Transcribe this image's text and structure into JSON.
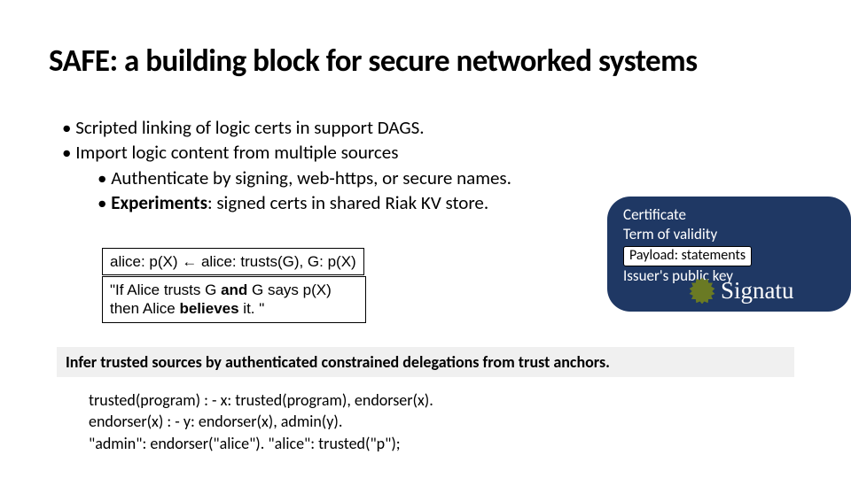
{
  "title": "SAFE: a building block for secure networked systems",
  "bullets": {
    "b1": "Scripted linking of logic certs in support DAGS.",
    "b2": "Import logic content from multiple sources",
    "b2a": "Authenticate by signing, web-https, or secure names.",
    "b2b_prefix": "Experiments",
    "b2b_rest": ": signed certs in shared Riak KV store."
  },
  "logic_box1": "alice: p(X) ← alice: trusts(G), G: p(X)",
  "logic_box2_l1_a": "\"If Alice trusts G ",
  "logic_box2_l1_b": "and",
  "logic_box2_l1_c": " G says p(X)",
  "logic_box2_l2_a": "then Alice ",
  "logic_box2_l2_b": "believes",
  "logic_box2_l2_c": " it. \"",
  "cert": {
    "l1": "Certificate",
    "l2": "Term of validity",
    "payload": "Payload: statements",
    "l4": "Issuer's public key",
    "sig": "Signatu"
  },
  "infer": "Infer trusted sources by authenticated constrained delegations from trust anchors.",
  "code": {
    "l1": "trusted(program) : - x: trusted(program), endorser(x).",
    "l2": "endorser(x) : -  y: endorser(x), admin(y).",
    "l3": "\"admin\": endorser(\"alice\").   \"alice\": trusted(\"p\");"
  },
  "colors": {
    "cert_bg": "#1f3864",
    "seal": "#6a7a24",
    "infer_bg": "#f0f0f0"
  }
}
